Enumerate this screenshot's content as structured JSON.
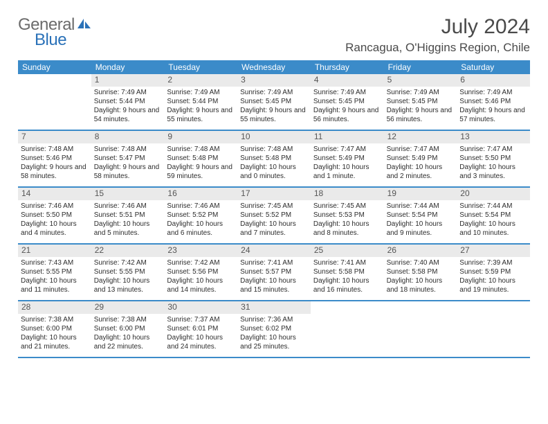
{
  "logo": {
    "general": "General",
    "blue": "Blue"
  },
  "title": "July 2024",
  "location": "Rancagua, O'Higgins Region, Chile",
  "colors": {
    "header_bg": "#3b8bc9",
    "header_text": "#ffffff",
    "daynum_bg": "#eaeaea",
    "border": "#3b8bc9",
    "logo_gray": "#6b6b6b",
    "logo_blue": "#2a71b8"
  },
  "weekdays": [
    "Sunday",
    "Monday",
    "Tuesday",
    "Wednesday",
    "Thursday",
    "Friday",
    "Saturday"
  ],
  "weeks": [
    [
      {
        "n": "",
        "sr": "",
        "ss": "",
        "dl": ""
      },
      {
        "n": "1",
        "sr": "Sunrise: 7:49 AM",
        "ss": "Sunset: 5:44 PM",
        "dl": "Daylight: 9 hours and 54 minutes."
      },
      {
        "n": "2",
        "sr": "Sunrise: 7:49 AM",
        "ss": "Sunset: 5:44 PM",
        "dl": "Daylight: 9 hours and 55 minutes."
      },
      {
        "n": "3",
        "sr": "Sunrise: 7:49 AM",
        "ss": "Sunset: 5:45 PM",
        "dl": "Daylight: 9 hours and 55 minutes."
      },
      {
        "n": "4",
        "sr": "Sunrise: 7:49 AM",
        "ss": "Sunset: 5:45 PM",
        "dl": "Daylight: 9 hours and 56 minutes."
      },
      {
        "n": "5",
        "sr": "Sunrise: 7:49 AM",
        "ss": "Sunset: 5:45 PM",
        "dl": "Daylight: 9 hours and 56 minutes."
      },
      {
        "n": "6",
        "sr": "Sunrise: 7:49 AM",
        "ss": "Sunset: 5:46 PM",
        "dl": "Daylight: 9 hours and 57 minutes."
      }
    ],
    [
      {
        "n": "7",
        "sr": "Sunrise: 7:48 AM",
        "ss": "Sunset: 5:46 PM",
        "dl": "Daylight: 9 hours and 58 minutes."
      },
      {
        "n": "8",
        "sr": "Sunrise: 7:48 AM",
        "ss": "Sunset: 5:47 PM",
        "dl": "Daylight: 9 hours and 58 minutes."
      },
      {
        "n": "9",
        "sr": "Sunrise: 7:48 AM",
        "ss": "Sunset: 5:48 PM",
        "dl": "Daylight: 9 hours and 59 minutes."
      },
      {
        "n": "10",
        "sr": "Sunrise: 7:48 AM",
        "ss": "Sunset: 5:48 PM",
        "dl": "Daylight: 10 hours and 0 minutes."
      },
      {
        "n": "11",
        "sr": "Sunrise: 7:47 AM",
        "ss": "Sunset: 5:49 PM",
        "dl": "Daylight: 10 hours and 1 minute."
      },
      {
        "n": "12",
        "sr": "Sunrise: 7:47 AM",
        "ss": "Sunset: 5:49 PM",
        "dl": "Daylight: 10 hours and 2 minutes."
      },
      {
        "n": "13",
        "sr": "Sunrise: 7:47 AM",
        "ss": "Sunset: 5:50 PM",
        "dl": "Daylight: 10 hours and 3 minutes."
      }
    ],
    [
      {
        "n": "14",
        "sr": "Sunrise: 7:46 AM",
        "ss": "Sunset: 5:50 PM",
        "dl": "Daylight: 10 hours and 4 minutes."
      },
      {
        "n": "15",
        "sr": "Sunrise: 7:46 AM",
        "ss": "Sunset: 5:51 PM",
        "dl": "Daylight: 10 hours and 5 minutes."
      },
      {
        "n": "16",
        "sr": "Sunrise: 7:46 AM",
        "ss": "Sunset: 5:52 PM",
        "dl": "Daylight: 10 hours and 6 minutes."
      },
      {
        "n": "17",
        "sr": "Sunrise: 7:45 AM",
        "ss": "Sunset: 5:52 PM",
        "dl": "Daylight: 10 hours and 7 minutes."
      },
      {
        "n": "18",
        "sr": "Sunrise: 7:45 AM",
        "ss": "Sunset: 5:53 PM",
        "dl": "Daylight: 10 hours and 8 minutes."
      },
      {
        "n": "19",
        "sr": "Sunrise: 7:44 AM",
        "ss": "Sunset: 5:54 PM",
        "dl": "Daylight: 10 hours and 9 minutes."
      },
      {
        "n": "20",
        "sr": "Sunrise: 7:44 AM",
        "ss": "Sunset: 5:54 PM",
        "dl": "Daylight: 10 hours and 10 minutes."
      }
    ],
    [
      {
        "n": "21",
        "sr": "Sunrise: 7:43 AM",
        "ss": "Sunset: 5:55 PM",
        "dl": "Daylight: 10 hours and 11 minutes."
      },
      {
        "n": "22",
        "sr": "Sunrise: 7:42 AM",
        "ss": "Sunset: 5:55 PM",
        "dl": "Daylight: 10 hours and 13 minutes."
      },
      {
        "n": "23",
        "sr": "Sunrise: 7:42 AM",
        "ss": "Sunset: 5:56 PM",
        "dl": "Daylight: 10 hours and 14 minutes."
      },
      {
        "n": "24",
        "sr": "Sunrise: 7:41 AM",
        "ss": "Sunset: 5:57 PM",
        "dl": "Daylight: 10 hours and 15 minutes."
      },
      {
        "n": "25",
        "sr": "Sunrise: 7:41 AM",
        "ss": "Sunset: 5:58 PM",
        "dl": "Daylight: 10 hours and 16 minutes."
      },
      {
        "n": "26",
        "sr": "Sunrise: 7:40 AM",
        "ss": "Sunset: 5:58 PM",
        "dl": "Daylight: 10 hours and 18 minutes."
      },
      {
        "n": "27",
        "sr": "Sunrise: 7:39 AM",
        "ss": "Sunset: 5:59 PM",
        "dl": "Daylight: 10 hours and 19 minutes."
      }
    ],
    [
      {
        "n": "28",
        "sr": "Sunrise: 7:38 AM",
        "ss": "Sunset: 6:00 PM",
        "dl": "Daylight: 10 hours and 21 minutes."
      },
      {
        "n": "29",
        "sr": "Sunrise: 7:38 AM",
        "ss": "Sunset: 6:00 PM",
        "dl": "Daylight: 10 hours and 22 minutes."
      },
      {
        "n": "30",
        "sr": "Sunrise: 7:37 AM",
        "ss": "Sunset: 6:01 PM",
        "dl": "Daylight: 10 hours and 24 minutes."
      },
      {
        "n": "31",
        "sr": "Sunrise: 7:36 AM",
        "ss": "Sunset: 6:02 PM",
        "dl": "Daylight: 10 hours and 25 minutes."
      },
      {
        "n": "",
        "sr": "",
        "ss": "",
        "dl": ""
      },
      {
        "n": "",
        "sr": "",
        "ss": "",
        "dl": ""
      },
      {
        "n": "",
        "sr": "",
        "ss": "",
        "dl": ""
      }
    ]
  ]
}
